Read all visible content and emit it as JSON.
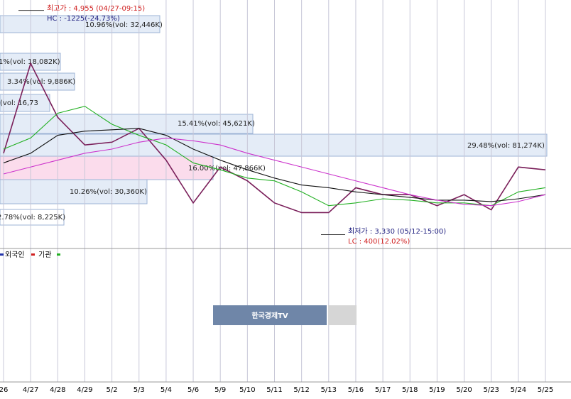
{
  "chart_data": {
    "type": "line",
    "categories": [
      "26",
      "4/27",
      "4/28",
      "4/29",
      "5/2",
      "5/3",
      "5/4",
      "5/6",
      "5/9",
      "5/10",
      "5/11",
      "5/12",
      "5/13",
      "5/16",
      "5/17",
      "5/18",
      "5/19",
      "5/20",
      "5/23",
      "5/24",
      "5/25"
    ],
    "ylim": [
      3230,
      5030
    ],
    "grid": true,
    "series": [
      {
        "color": "#7a1f5a",
        "values": [
          3920,
          4570,
          4180,
          3980,
          4000,
          4100,
          3870,
          3560,
          3820,
          3720,
          3560,
          3490,
          3490,
          3670,
          3620,
          3620,
          3540,
          3620,
          3510,
          3820,
          3800
        ]
      },
      {
        "color": "#22b022",
        "values": [
          3950,
          4030,
          4210,
          4260,
          4130,
          4050,
          3980,
          3850,
          3800,
          3740,
          3720,
          3640,
          3540,
          3560,
          3590,
          3580,
          3560,
          3560,
          3540,
          3640,
          3670
        ]
      },
      {
        "color": "#111111",
        "values": [
          3850,
          3920,
          4050,
          4080,
          4090,
          4100,
          4050,
          3950,
          3870,
          3800,
          3740,
          3690,
          3670,
          3640,
          3620,
          3600,
          3580,
          3580,
          3570,
          3590,
          3620
        ]
      },
      {
        "color": "#cc33cc",
        "values": [
          3770,
          3820,
          3870,
          3920,
          3950,
          4000,
          4030,
          4010,
          3980,
          3920,
          3870,
          3820,
          3770,
          3720,
          3670,
          3620,
          3580,
          3550,
          3540,
          3570,
          3620
        ]
      }
    ],
    "high": {
      "value": 4955,
      "label": "최고가 : 4,955 (04/27-09:15)",
      "note": "HC : -1225(-24.73%)"
    },
    "low": {
      "value": 3330,
      "label": "최저가 : 3,330 (05/12-15:00)",
      "note": "LC : 400(12.02%)"
    },
    "volume_profile": [
      "10.96%(vol: 32,446K)",
      "1%(vol: 18,082K)",
      "3.34%(vol: 9,886K)",
      "(vol: 16,73",
      "15.41%(vol: 45,621K)",
      "29.48%(vol: 81,274K)",
      "16.00%(vol: 47,866K)",
      "10.26%(vol: 30,360K)",
      "2.78%(vol: 8,225K)"
    ],
    "legend_texts": [
      "외국인",
      "기관"
    ],
    "watermark": "한국경제TV"
  }
}
